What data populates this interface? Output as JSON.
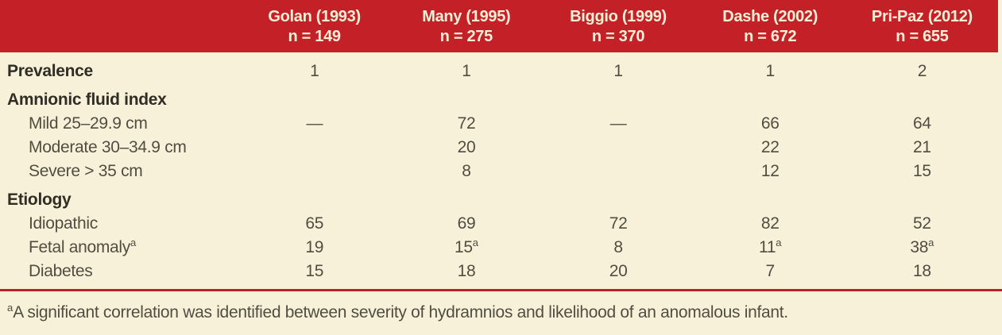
{
  "table": {
    "columns": [
      {
        "study": "Golan (1993)",
        "n": "n = 149"
      },
      {
        "study": "Many (1995)",
        "n": "n = 275"
      },
      {
        "study": "Biggio (1999)",
        "n": "n = 370"
      },
      {
        "study": "Dashe (2002)",
        "n": "n = 672"
      },
      {
        "study": "Pri-Paz (2012)",
        "n": "n = 655"
      }
    ],
    "rows": [
      {
        "label": "Prevalence",
        "values": [
          "1",
          "1",
          "1",
          "1",
          "2"
        ]
      },
      {
        "label": "Amnionic fluid index",
        "values": [
          "",
          "",
          "",
          "",
          ""
        ]
      },
      {
        "label": "Mild 25–29.9 cm",
        "values": [
          "—",
          "72",
          "—",
          "66",
          "64"
        ]
      },
      {
        "label": "Moderate 30–34.9 cm",
        "values": [
          "",
          "20",
          "",
          "22",
          "21"
        ]
      },
      {
        "label": "Severe > 35 cm",
        "values": [
          "",
          "8",
          "",
          "12",
          "15"
        ]
      },
      {
        "label": "Etiology",
        "values": [
          "",
          "",
          "",
          "",
          ""
        ]
      },
      {
        "label": "Idiopathic",
        "values": [
          "65",
          "69",
          "72",
          "82",
          "52"
        ]
      },
      {
        "label": "Fetal anomaly",
        "label_sup": "a",
        "values": [
          "19",
          "15",
          "8",
          "11",
          "38"
        ],
        "sups": [
          "",
          "a",
          "",
          "a",
          "a"
        ]
      },
      {
        "label": "Diabetes",
        "values": [
          "15",
          "18",
          "20",
          "7",
          "18"
        ]
      }
    ]
  },
  "footnote": {
    "sup": "a",
    "text": "A significant correlation was identified between severity of hydramnios and likelihood of an anomalous infant."
  },
  "colors": {
    "header_red": "#c32127",
    "top_dark_rule": "#7d1619",
    "footer_rule_red": "#b5242a",
    "background_cream": "#f8f1d9",
    "header_text": "#f7eed6",
    "section_label_text": "#2f2d25",
    "body_text": "#504e42"
  }
}
